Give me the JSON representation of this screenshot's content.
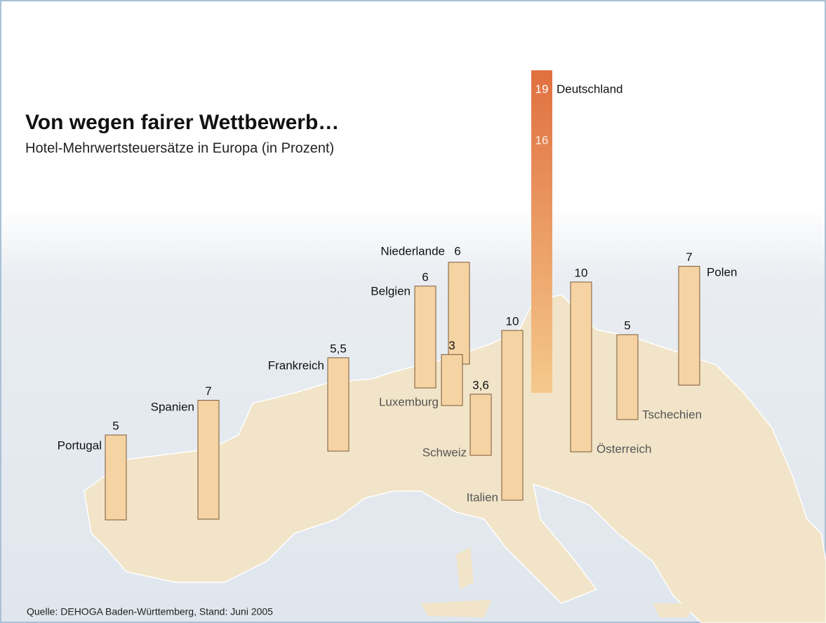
{
  "chart_data": {
    "type": "bar",
    "title": "Von wegen fairer Wettbewerb…",
    "subtitle": "Hotel-Mehrwertsteuersätze in Europa (in Prozent)",
    "source": "Quelle: DEHOGA Baden-Württemberg, Stand: Juni 2005",
    "categories": [
      "Portugal",
      "Spanien",
      "Frankreich",
      "Belgien",
      "Niederlande",
      "Luxemburg",
      "Schweiz",
      "Italien",
      "Deutschland",
      "Österreich",
      "Tschechien",
      "Polen"
    ],
    "values": [
      5,
      7,
      5.5,
      6,
      6,
      3,
      3.6,
      10,
      19,
      10,
      5,
      7
    ],
    "value_labels": [
      "5",
      "7",
      "5,5",
      "6",
      "6",
      "3",
      "3,6",
      "10",
      "19",
      "10",
      "5",
      "7"
    ],
    "markers": [
      16
    ],
    "color": "#f5d3a3",
    "highlight_colors": [
      "#e0703f",
      "#f5c98c"
    ]
  }
}
